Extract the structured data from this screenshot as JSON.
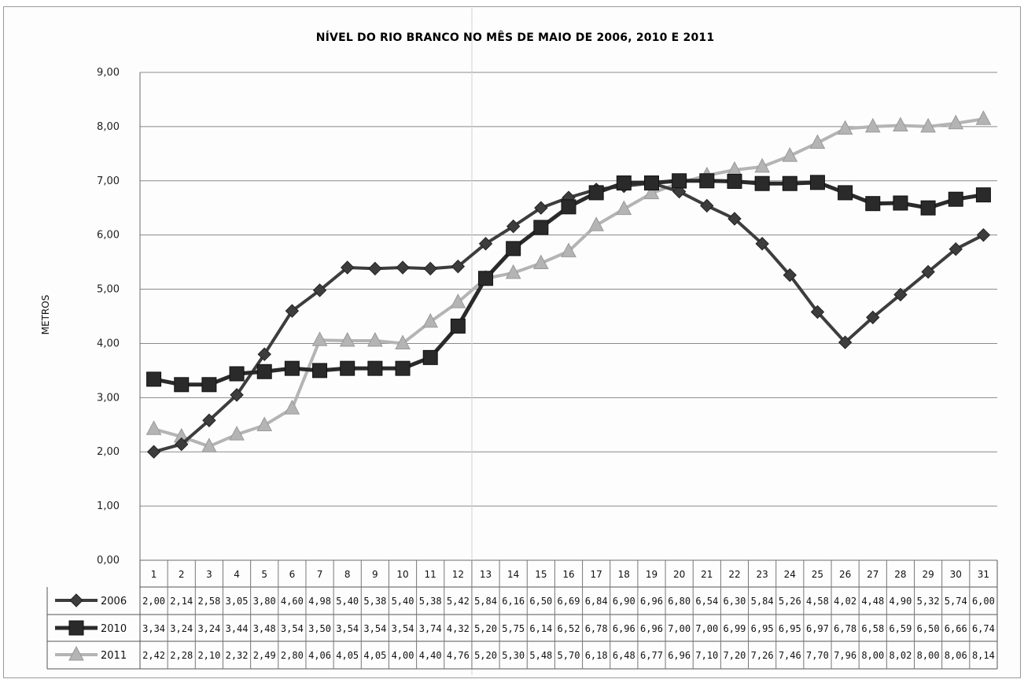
{
  "chart_data": {
    "type": "line",
    "title": "NÍVEL DO RIO BRANCO NO MÊS DE MAIO DE 2006, 2010 E 2011",
    "ylabel": "METROS",
    "xlabel": "",
    "ylim": [
      0,
      9
    ],
    "yticks": [
      "0,00",
      "1,00",
      "2,00",
      "3,00",
      "4,00",
      "5,00",
      "6,00",
      "7,00",
      "8,00",
      "9,00"
    ],
    "grid": true,
    "legend": "data-table-left",
    "categories": [
      "1",
      "2",
      "3",
      "4",
      "5",
      "6",
      "7",
      "8",
      "9",
      "10",
      "11",
      "12",
      "13",
      "14",
      "15",
      "16",
      "17",
      "18",
      "19",
      "20",
      "21",
      "22",
      "23",
      "24",
      "25",
      "26",
      "27",
      "28",
      "29",
      "30",
      "31"
    ],
    "series": [
      {
        "name": "2006",
        "marker": "diamond",
        "color": "#3d3d3d",
        "values": [
          2.0,
          2.14,
          2.58,
          3.05,
          3.8,
          4.6,
          4.98,
          5.4,
          5.38,
          5.4,
          5.38,
          5.42,
          5.84,
          6.16,
          6.5,
          6.69,
          6.84,
          6.9,
          6.96,
          6.8,
          6.54,
          6.3,
          5.84,
          5.26,
          4.58,
          4.02,
          4.48,
          4.9,
          5.32,
          5.74,
          6.0
        ],
        "labels": [
          "2,00",
          "2,14",
          "2,58",
          "3,05",
          "3,80",
          "4,60",
          "4,98",
          "5,40",
          "5,38",
          "5,40",
          "5,38",
          "5,42",
          "5,84",
          "6,16",
          "6,50",
          "6,69",
          "6,84",
          "6,90",
          "6,96",
          "6,80",
          "6,54",
          "6,30",
          "5,84",
          "5,26",
          "4,58",
          "4,02",
          "4,48",
          "4,90",
          "5,32",
          "5,74",
          "6,00"
        ]
      },
      {
        "name": "2010",
        "marker": "square",
        "color": "#2a2a2a",
        "values": [
          3.34,
          3.24,
          3.24,
          3.44,
          3.48,
          3.54,
          3.5,
          3.54,
          3.54,
          3.54,
          3.74,
          4.32,
          5.2,
          5.75,
          6.14,
          6.52,
          6.78,
          6.96,
          6.96,
          7.0,
          7.0,
          6.99,
          6.95,
          6.95,
          6.97,
          6.78,
          6.58,
          6.59,
          6.5,
          6.66,
          6.74
        ],
        "labels": [
          "3,34",
          "3,24",
          "3,24",
          "3,44",
          "3,48",
          "3,54",
          "3,50",
          "3,54",
          "3,54",
          "3,54",
          "3,74",
          "4,32",
          "5,20",
          "5,75",
          "6,14",
          "6,52",
          "6,78",
          "6,96",
          "6,96",
          "7,00",
          "7,00",
          "6,99",
          "6,95",
          "6,95",
          "6,97",
          "6,78",
          "6,58",
          "6,59",
          "6,50",
          "6,66",
          "6,74"
        ]
      },
      {
        "name": "2011",
        "marker": "triangle",
        "color": "#b4b4b4",
        "values": [
          2.42,
          2.28,
          2.1,
          2.32,
          2.49,
          2.8,
          4.06,
          4.05,
          4.05,
          4.0,
          4.4,
          4.76,
          5.2,
          5.3,
          5.48,
          5.7,
          6.18,
          6.48,
          6.77,
          6.96,
          7.1,
          7.2,
          7.26,
          7.46,
          7.7,
          7.96,
          8.0,
          8.02,
          8.0,
          8.06,
          8.14
        ],
        "labels": [
          "2,42",
          "2,28",
          "2,10",
          "2,32",
          "2,49",
          "2,80",
          "4,06",
          "4,05",
          "4,05",
          "4,00",
          "4,40",
          "4,76",
          "5,20",
          "5,30",
          "5,48",
          "5,70",
          "6,18",
          "6,48",
          "6,77",
          "6,96",
          "7,10",
          "7,20",
          "7,26",
          "7,46",
          "7,70",
          "7,96",
          "8,00",
          "8,02",
          "8,00",
          "8,06",
          "8,14"
        ]
      }
    ]
  }
}
